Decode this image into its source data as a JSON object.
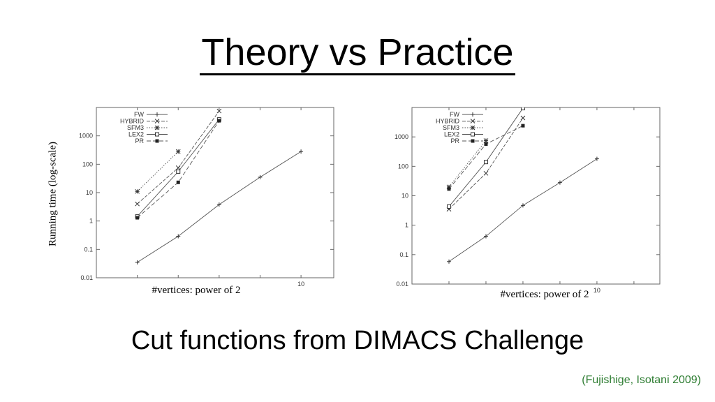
{
  "slide": {
    "title": "Theory vs Practice",
    "subtitle": "Cut functions from DIMACS Challenge",
    "citation": "(Fujishige, Isotani 2009)",
    "ylabel": "Running time (log-scale)"
  },
  "chart_data": [
    {
      "type": "line",
      "title": "",
      "xlabel": "#vertices: power of 2",
      "ylabel": "Running time (log-scale)",
      "yscale": "log",
      "ylim": [
        0.01,
        10000
      ],
      "xlim": [
        5,
        10.8
      ],
      "y_ticks": [
        0.01,
        0.1,
        1,
        10,
        100,
        1000
      ],
      "y_tick_labels": [
        "0.01",
        "0.1",
        "1",
        "10",
        "100",
        "1000"
      ],
      "x_ticks": [
        10
      ],
      "x_tick_labels": [
        "10"
      ],
      "grid": false,
      "legend_position": "top-left",
      "series": [
        {
          "name": "FW",
          "marker": "plus",
          "dash": "",
          "x": [
            6,
            7,
            8,
            9,
            10
          ],
          "y": [
            0.035,
            0.29,
            3.8,
            35,
            280
          ]
        },
        {
          "name": "HYBRID",
          "marker": "cross",
          "dash": "5,2",
          "x": [
            6,
            7,
            8
          ],
          "y": [
            4,
            75,
            7500
          ]
        },
        {
          "name": "SFM3",
          "marker": "star",
          "dash": "1.5,2",
          "x": [
            6,
            7
          ],
          "y": [
            11,
            280
          ]
        },
        {
          "name": "LEX2",
          "marker": "square-open",
          "dash": "",
          "x": [
            6,
            7,
            8
          ],
          "y": [
            1.45,
            55,
            3800
          ]
        },
        {
          "name": "PR",
          "marker": "square-filled",
          "dash": "6,3",
          "x": [
            6,
            7,
            8
          ],
          "y": [
            1.3,
            23,
            3400
          ]
        }
      ]
    },
    {
      "type": "line",
      "title": "",
      "xlabel": "#vertices: power of 2",
      "ylabel": "",
      "yscale": "log",
      "ylim": [
        0.01,
        10000
      ],
      "xlim": [
        5,
        11.7
      ],
      "y_ticks": [
        0.01,
        0.1,
        1,
        10,
        100,
        1000
      ],
      "y_tick_labels": [
        "0.01",
        "0.1",
        "1",
        "10",
        "100",
        "1000"
      ],
      "x_ticks": [
        10
      ],
      "x_tick_labels": [
        "10"
      ],
      "grid": false,
      "legend_position": "top-left",
      "series": [
        {
          "name": "FW",
          "marker": "plus",
          "dash": "",
          "x": [
            6,
            7,
            8,
            9,
            10
          ],
          "y": [
            0.058,
            0.42,
            4.7,
            28,
            180
          ]
        },
        {
          "name": "HYBRID",
          "marker": "cross",
          "dash": "5,2",
          "x": [
            6,
            7,
            8
          ],
          "y": [
            3.5,
            58,
            4400
          ]
        },
        {
          "name": "SFM3",
          "marker": "star",
          "dash": "1.5,2",
          "x": [
            6,
            7
          ],
          "y": [
            20,
            750
          ]
        },
        {
          "name": "LEX2",
          "marker": "square-open",
          "dash": "",
          "x": [
            6,
            7,
            8
          ],
          "y": [
            4.3,
            140,
            9500
          ]
        },
        {
          "name": "PR",
          "marker": "square-filled",
          "dash": "6,3",
          "x": [
            6,
            7,
            8
          ],
          "y": [
            17,
            570,
            2400
          ]
        }
      ]
    }
  ]
}
